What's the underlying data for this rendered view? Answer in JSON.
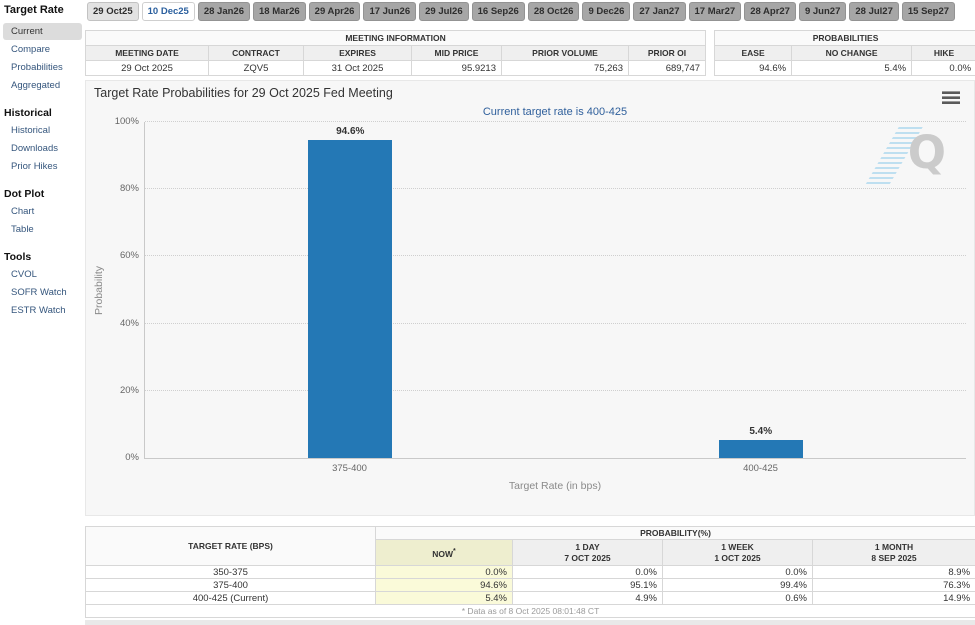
{
  "colors": {
    "bar_blue": "#2478b5",
    "subtitle_blue": "#30609c",
    "now_column_yellow": "#fafad9",
    "active_tab_text": "#2a5f9e",
    "chart_background": "#f7f7f7"
  },
  "tabs": {
    "selected_index": 1,
    "items": [
      "29 Oct25",
      "10 Dec25",
      "28 Jan26",
      "18 Mar26",
      "29 Apr26",
      "17 Jun26",
      "29 Jul26",
      "16 Sep26",
      "28 Oct26",
      "9 Dec26",
      "27 Jan27",
      "17 Mar27",
      "28 Apr27",
      "9 Jun27",
      "28 Jul27",
      "15 Sep27"
    ]
  },
  "sidebar": {
    "selected": "Current",
    "sections": [
      {
        "title": "Target Rate",
        "items": [
          "Current",
          "Compare",
          "Probabilities",
          "Aggregated"
        ]
      },
      {
        "title": "Historical",
        "items": [
          "Historical",
          "Downloads",
          "Prior Hikes"
        ]
      },
      {
        "title": "Dot Plot",
        "items": [
          "Chart",
          "Table"
        ]
      },
      {
        "title": "Tools",
        "items": [
          "CVOL",
          "SOFR Watch",
          "ESTR Watch"
        ]
      }
    ]
  },
  "meeting_info": {
    "title": "MEETING INFORMATION",
    "headers": [
      "MEETING DATE",
      "CONTRACT",
      "EXPIRES",
      "MID PRICE",
      "PRIOR VOLUME",
      "PRIOR OI"
    ],
    "row": [
      "29 Oct 2025",
      "ZQV5",
      "31 Oct 2025",
      "95.9213",
      "75,263",
      "689,747"
    ]
  },
  "probabilities_summary": {
    "title": "PROBABILITIES",
    "headers": [
      "EASE",
      "NO CHANGE",
      "HIKE"
    ],
    "row": [
      "94.6%",
      "5.4%",
      "0.0%"
    ]
  },
  "chart_data": {
    "type": "bar",
    "title": "Target Rate Probabilities for 29 Oct 2025 Fed Meeting",
    "subtitle": "Current target rate is 400-425",
    "categories": [
      "375-400",
      "400-425"
    ],
    "values": [
      94.6,
      5.4
    ],
    "value_labels": [
      "94.6%",
      "5.4%"
    ],
    "xlabel": "Target Rate (in bps)",
    "ylabel": "Probability",
    "ylim": [
      0,
      100
    ],
    "ytick_labels": [
      "0%",
      "20%",
      "40%",
      "60%",
      "80%",
      "100%"
    ],
    "bar_color": "#2478b5",
    "grid": "dotted-horizontal",
    "legend": "none",
    "watermark_letter": "Q"
  },
  "history_table": {
    "col1_header": "TARGET RATE (BPS)",
    "group_header": "PROBABILITY(%)",
    "columns": [
      {
        "line1": "NOW",
        "sup": "*",
        "line2": ""
      },
      {
        "line1": "1 DAY",
        "sup": "",
        "line2": "7 OCT 2025"
      },
      {
        "line1": "1 WEEK",
        "sup": "",
        "line2": "1 OCT 2025"
      },
      {
        "line1": "1 MONTH",
        "sup": "",
        "line2": "8 SEP 2025"
      }
    ],
    "rows": [
      {
        "label": "350-375",
        "values": [
          "0.0%",
          "0.0%",
          "0.0%",
          "8.9%"
        ]
      },
      {
        "label": "375-400",
        "values": [
          "94.6%",
          "95.1%",
          "99.4%",
          "76.3%"
        ]
      },
      {
        "label": "400-425 (Current)",
        "values": [
          "5.4%",
          "4.9%",
          "0.6%",
          "14.9%"
        ]
      }
    ],
    "footnote": "* Data as of 8 Oct 2025 08:01:48 CT"
  }
}
